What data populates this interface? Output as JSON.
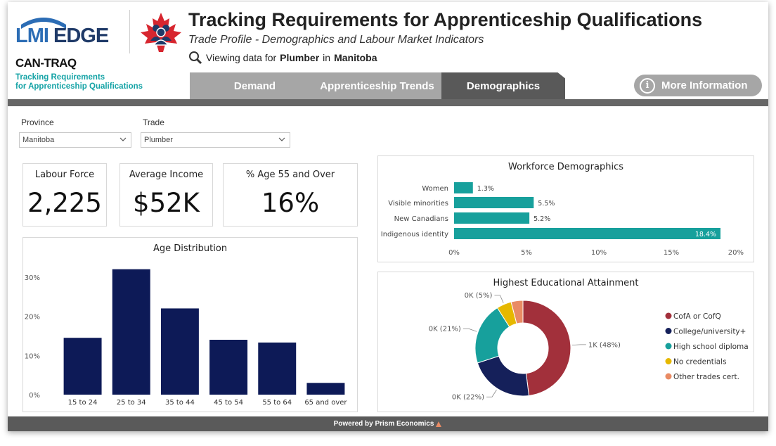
{
  "header": {
    "logo_lmi": "LMI",
    "logo_edge": "EDGE",
    "cantraq_title": "CAN-TRAQ",
    "cantraq_line1": "Tracking Requirements",
    "cantraq_line2": "for Apprenticeship Qualifications",
    "title": "Tracking Requirements for Apprenticeship Qualifications",
    "subtitle": "Trade Profile - Demographics and Labour Market Indicators",
    "viewing_prefix": "Viewing data for",
    "viewing_trade": "Plumber",
    "viewing_in": "in",
    "viewing_province": "Manitoba"
  },
  "tabs": [
    {
      "label": "Demand"
    },
    {
      "label": "Apprenticeship Trends"
    },
    {
      "label": "Demographics"
    }
  ],
  "more_info_label": "More Information",
  "filters": {
    "province_label": "Province",
    "province_value": "Manitoba",
    "trade_label": "Trade",
    "trade_value": "Plumber"
  },
  "kpis": [
    {
      "label": "Labour Force",
      "value": "2,225"
    },
    {
      "label": "Average Income",
      "value": "$52K"
    },
    {
      "label": "% Age 55 and Over",
      "value": "16%"
    }
  ],
  "footer_text": "Powered by Prism Economics",
  "colors": {
    "navy": "#0d1a57",
    "teal": "#17a09c",
    "gray": "#a6a6a6",
    "dark_gray": "#595959"
  },
  "chart_data": [
    {
      "type": "bar",
      "title": "Age Distribution",
      "categories": [
        "15 to 24",
        "25 to 34",
        "35 to 44",
        "45 to 54",
        "55 to 64",
        "65 and over"
      ],
      "values": [
        14.5,
        32,
        22,
        14,
        13.3,
        3
      ],
      "ylim": [
        0,
        35
      ],
      "yticks": [
        0,
        10,
        20,
        30
      ],
      "ytick_labels": [
        "0%",
        "10%",
        "20%",
        "30%"
      ],
      "color": "#0d1a57"
    },
    {
      "type": "bar",
      "orientation": "horizontal",
      "title": "Workforce Demographics",
      "categories": [
        "Women",
        "Visible minorities",
        "New Canadians",
        "Indigenous identity"
      ],
      "values": [
        1.3,
        5.5,
        5.2,
        18.4
      ],
      "value_labels": [
        "1.3%",
        "5.5%",
        "5.2%",
        "18.4%"
      ],
      "xlim": [
        0,
        20
      ],
      "xticks": [
        0,
        5,
        10,
        15,
        20
      ],
      "xtick_labels": [
        "0%",
        "5%",
        "10%",
        "15%",
        "20%"
      ],
      "color": "#17a09c"
    },
    {
      "type": "pie",
      "donut": true,
      "title": "Highest Educational Attainment",
      "labels": [
        "CofA or CofQ",
        "College/university+",
        "High school diploma",
        "No credentials",
        "Other trades cert."
      ],
      "values": [
        48,
        22,
        21,
        5,
        4
      ],
      "slice_labels": [
        "1K (48%)",
        "0K (22%)",
        "0K (21%)",
        "0K (5%)",
        ""
      ],
      "colors": [
        "#a2303b",
        "#15205a",
        "#17a09c",
        "#e6b800",
        "#e98b64"
      ]
    }
  ]
}
